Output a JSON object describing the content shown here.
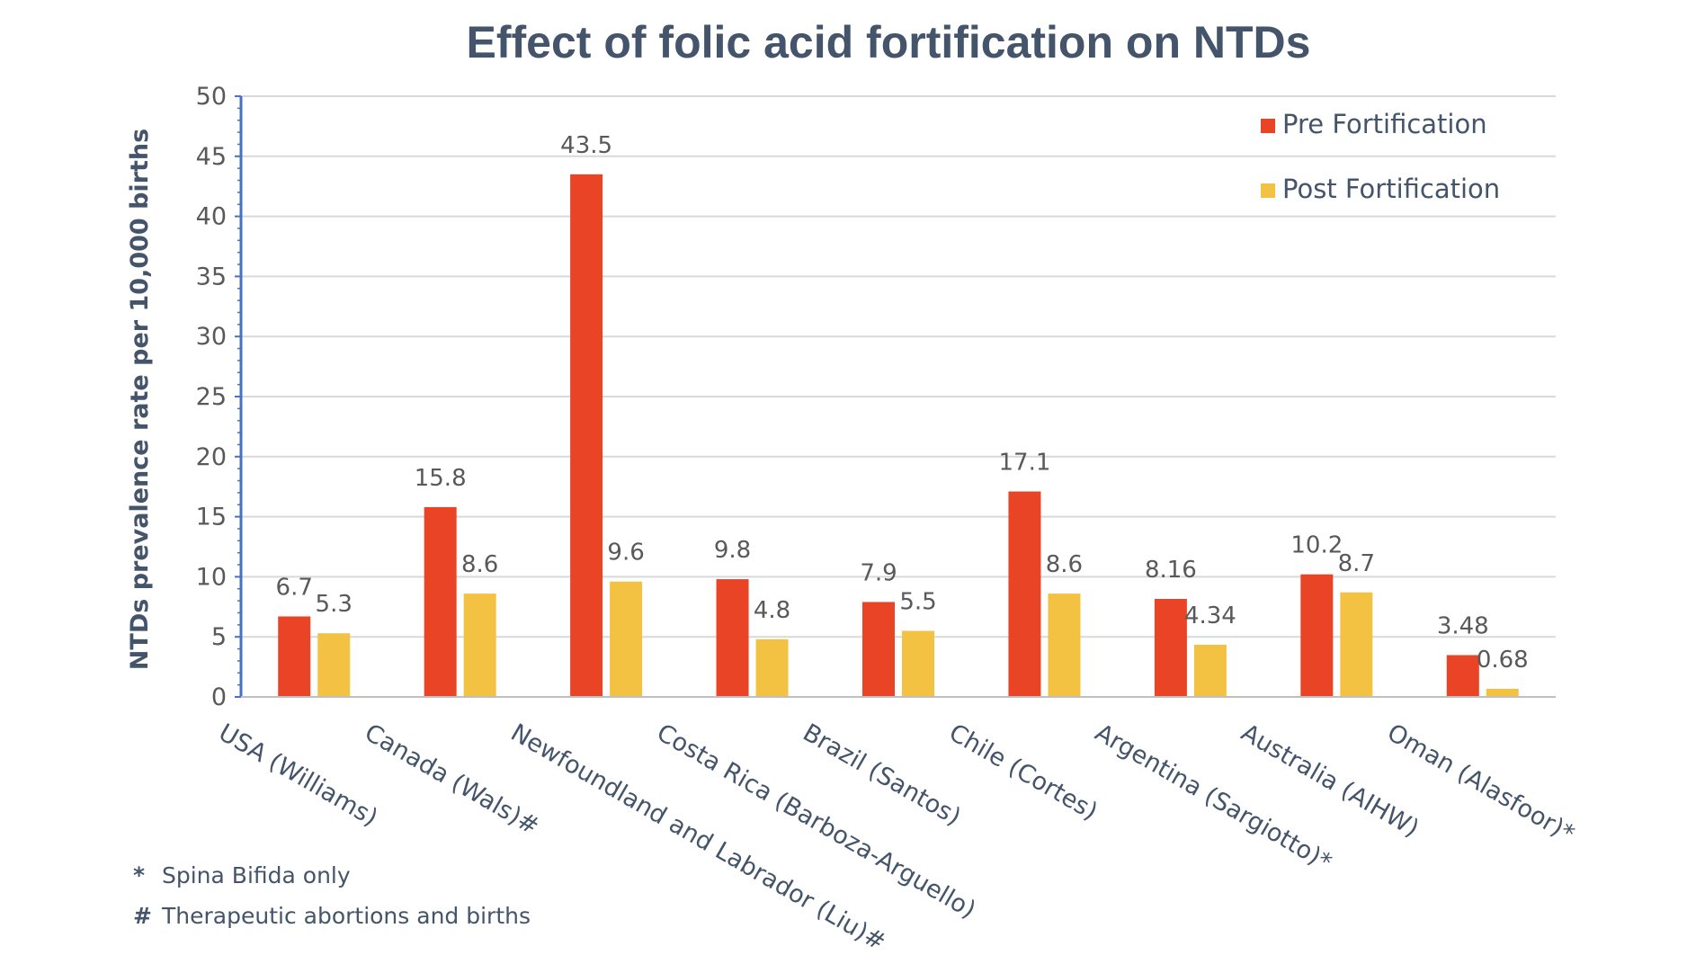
{
  "chart_data": {
    "type": "bar",
    "title": "Effect of folic acid fortification on NTDs",
    "ylabel": "NTDs prevalence rate per 10,000 births",
    "xlabel": "",
    "ylim": [
      0,
      50
    ],
    "yticks": [
      0,
      5,
      10,
      15,
      20,
      25,
      30,
      35,
      40,
      45,
      50
    ],
    "grid": true,
    "legend_position": "top-right",
    "categories": [
      "USA (Williams)",
      "Canada (Wals)#",
      "Newfoundland and Labrador (Liu)#",
      "Costa Rica (Barboza-Arguello)",
      "Brazil (Santos)",
      "Chile (Cortes)",
      "Argentina (Sargiotto)*",
      "Australia (AIHW)",
      "Oman (Alasfoor)*"
    ],
    "series": [
      {
        "name": "Pre Fortification",
        "color": "#e84425",
        "values": [
          6.7,
          15.8,
          43.5,
          9.8,
          7.9,
          17.1,
          8.16,
          10.2,
          3.48
        ],
        "labels": [
          "6.7",
          "15.8",
          "43.5",
          "9.8",
          "7.9",
          "17.1",
          "8.16",
          "10.2",
          "3.48"
        ]
      },
      {
        "name": "Post Fortification",
        "color": "#f4c242",
        "values": [
          5.3,
          8.6,
          9.6,
          4.8,
          5.5,
          8.6,
          4.34,
          8.7,
          0.68
        ],
        "labels": [
          "5.3",
          "8.6",
          "9.6",
          "4.8",
          "5.5",
          "8.6",
          "4.34",
          "8.7",
          "0.68"
        ]
      }
    ],
    "footnotes": [
      {
        "symbol": "*",
        "text": "Spina Bifida only"
      },
      {
        "symbol": "#",
        "text": "Therapeutic abortions and births"
      }
    ]
  },
  "colors": {
    "axis": "#4472c4",
    "grid": "#d9d9d9",
    "text": "#44546a"
  }
}
